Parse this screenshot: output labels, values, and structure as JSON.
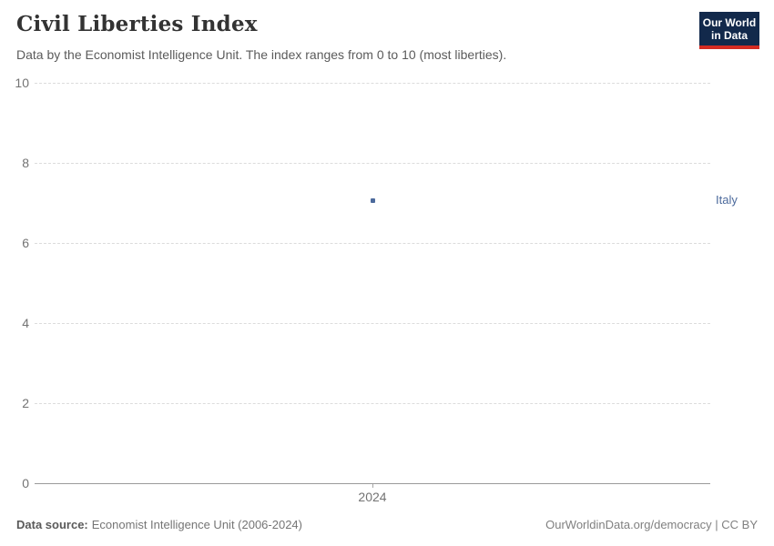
{
  "header": {
    "title": "Civil Liberties Index",
    "subtitle": "Data by the Economist Intelligence Unit. The index ranges from 0 to 10 (most liberties).",
    "logo": {
      "line1": "Our World",
      "line2": "in Data"
    }
  },
  "chart_data": {
    "type": "scatter",
    "title": "Civil Liberties Index",
    "series": [
      {
        "name": "Italy",
        "x": [
          2024
        ],
        "y": [
          7.06
        ]
      }
    ],
    "x_tick_labels": [
      "2024"
    ],
    "y_ticks": [
      0,
      2,
      4,
      6,
      8,
      10
    ],
    "ylim": [
      0,
      10
    ],
    "xlabel": "",
    "ylabel": "",
    "grid": true,
    "gridline_style": "dashed",
    "legend_position": "right-of-point",
    "point_color": "#4C6A9C"
  },
  "footer": {
    "source_label": "Data source:",
    "source_text": "Economist Intelligence Unit (2006-2024)",
    "link_text": "OurWorldinData.org/democracy | CC BY"
  },
  "colors": {
    "accent_blue": "#4C6A9C",
    "logo_navy": "#12294B",
    "logo_red": "#D42B22",
    "gridline": "#DCDCDC",
    "axis_line": "#9A9A9A",
    "tick_label": "#737373"
  }
}
